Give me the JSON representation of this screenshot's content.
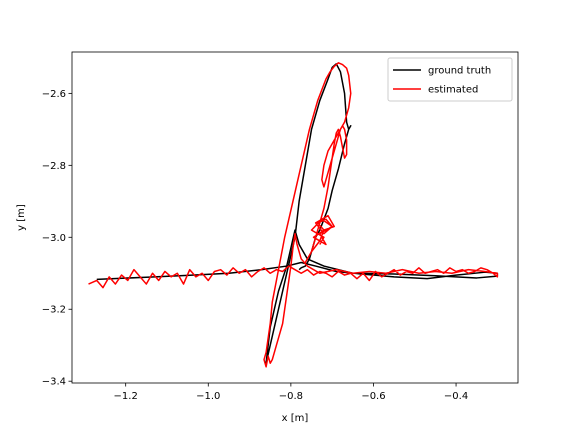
{
  "chart_data": {
    "type": "line",
    "title": "",
    "xlabel": "x [m]",
    "ylabel": "y [m]",
    "xlim": [
      -1.33,
      -0.25
    ],
    "ylim": [
      -3.405,
      -2.485
    ],
    "xticks": [
      -1.2,
      -1.0,
      -0.8,
      -0.6,
      -0.4
    ],
    "xtick_labels": [
      "−1.2",
      "−1.0",
      "−0.8",
      "−0.6",
      "−0.4"
    ],
    "yticks": [
      -3.4,
      -3.2,
      -3.0,
      -2.8,
      -2.6
    ],
    "ytick_labels": [
      "−3.4",
      "−3.2",
      "−3.0",
      "−2.8",
      "−2.6"
    ],
    "grid": false,
    "legend_position": "upper right",
    "series": [
      {
        "name": "ground truth",
        "color": "#000000",
        "x": [
          -1.27,
          -1.15,
          -1.05,
          -0.95,
          -0.87,
          -0.81,
          -0.775,
          -0.74,
          -0.69,
          -0.63,
          -0.55,
          -0.47,
          -0.4,
          -0.33,
          -0.3,
          -0.3,
          -0.35,
          -0.45,
          -0.55,
          -0.65,
          -0.72,
          -0.76,
          -0.78,
          -0.79,
          -0.8,
          -0.81,
          -0.83,
          -0.85,
          -0.86,
          -0.85,
          -0.83,
          -0.81,
          -0.79,
          -0.78,
          -0.765,
          -0.75,
          -0.73,
          -0.71,
          -0.7,
          -0.69,
          -0.68,
          -0.67,
          -0.665,
          -0.66,
          -0.655,
          -0.66,
          -0.67,
          -0.685,
          -0.7,
          -0.71,
          -0.72,
          -0.73,
          -0.74,
          -0.745,
          -0.75,
          -0.755,
          -0.76,
          -0.765,
          -0.775,
          -0.78
        ],
        "y": [
          -3.117,
          -3.111,
          -3.106,
          -3.1,
          -3.09,
          -3.08,
          -3.07,
          -3.08,
          -3.095,
          -3.102,
          -3.11,
          -3.115,
          -3.105,
          -3.097,
          -3.1,
          -3.108,
          -3.113,
          -3.107,
          -3.102,
          -3.1,
          -3.08,
          -3.06,
          -3.02,
          -2.98,
          -3.03,
          -3.08,
          -3.15,
          -3.25,
          -3.35,
          -3.3,
          -3.2,
          -3.1,
          -3.0,
          -2.9,
          -2.8,
          -2.7,
          -2.62,
          -2.56,
          -2.528,
          -2.518,
          -2.54,
          -2.6,
          -2.68,
          -2.7,
          -2.69,
          -2.7,
          -2.74,
          -2.81,
          -2.87,
          -2.92,
          -2.95,
          -2.98,
          -3.0,
          -3.02,
          -3.04,
          -3.06,
          -3.07,
          -3.08,
          -3.085,
          -3.09
        ]
      },
      {
        "name": "estimated",
        "color": "#ff0000",
        "x": [
          -1.29,
          -1.27,
          -1.255,
          -1.24,
          -1.225,
          -1.21,
          -1.195,
          -1.18,
          -1.165,
          -1.15,
          -1.135,
          -1.12,
          -1.105,
          -1.09,
          -1.075,
          -1.06,
          -1.045,
          -1.03,
          -1.015,
          -1.0,
          -0.985,
          -0.97,
          -0.955,
          -0.94,
          -0.925,
          -0.91,
          -0.895,
          -0.88,
          -0.865,
          -0.85,
          -0.835,
          -0.82,
          -0.805,
          -0.79,
          -0.775,
          -0.76,
          -0.745,
          -0.73,
          -0.715,
          -0.7,
          -0.685,
          -0.67,
          -0.655,
          -0.64,
          -0.625,
          -0.61,
          -0.595,
          -0.58,
          -0.565,
          -0.55,
          -0.535,
          -0.52,
          -0.505,
          -0.49,
          -0.475,
          -0.46,
          -0.445,
          -0.43,
          -0.415,
          -0.4,
          -0.385,
          -0.37,
          -0.355,
          -0.34,
          -0.325,
          -0.31,
          -0.3,
          -0.3,
          -0.33,
          -0.37,
          -0.41,
          -0.45,
          -0.49,
          -0.53,
          -0.57,
          -0.61,
          -0.65,
          -0.69,
          -0.73,
          -0.76,
          -0.775,
          -0.785,
          -0.79,
          -0.795,
          -0.8,
          -0.805,
          -0.81,
          -0.815,
          -0.82,
          -0.83,
          -0.835,
          -0.84,
          -0.845,
          -0.85,
          -0.855,
          -0.86,
          -0.865,
          -0.86,
          -0.855,
          -0.85,
          -0.845,
          -0.835,
          -0.825,
          -0.815,
          -0.805,
          -0.795,
          -0.785,
          -0.775,
          -0.765,
          -0.755,
          -0.745,
          -0.735,
          -0.725,
          -0.715,
          -0.705,
          -0.695,
          -0.685,
          -0.675,
          -0.665,
          -0.66,
          -0.655,
          -0.66,
          -0.67,
          -0.68,
          -0.69,
          -0.7,
          -0.71,
          -0.72,
          -0.725,
          -0.72,
          -0.71,
          -0.7,
          -0.69,
          -0.68,
          -0.675,
          -0.67,
          -0.665,
          -0.665,
          -0.67,
          -0.675,
          -0.68,
          -0.685,
          -0.69,
          -0.695,
          -0.7,
          -0.705,
          -0.71,
          -0.715,
          -0.72,
          -0.725,
          -0.73,
          -0.735,
          -0.74,
          -0.745,
          -0.75,
          -0.755,
          -0.76,
          -0.765,
          -0.75,
          -0.73,
          -0.72,
          -0.735,
          -0.715,
          -0.7,
          -0.72,
          -0.74,
          -0.71,
          -0.695,
          -0.72,
          -0.745,
          -0.715,
          -0.73,
          -0.7,
          -0.725,
          -0.75,
          -0.72,
          -0.73
        ],
        "y": [
          -3.13,
          -3.12,
          -3.14,
          -3.11,
          -3.13,
          -3.105,
          -3.12,
          -3.09,
          -3.11,
          -3.13,
          -3.1,
          -3.12,
          -3.095,
          -3.11,
          -3.1,
          -3.13,
          -3.09,
          -3.11,
          -3.1,
          -3.12,
          -3.095,
          -3.09,
          -3.105,
          -3.085,
          -3.1,
          -3.09,
          -3.11,
          -3.095,
          -3.085,
          -3.1,
          -3.09,
          -3.095,
          -3.08,
          -3.09,
          -3.1,
          -3.09,
          -3.105,
          -3.095,
          -3.1,
          -3.11,
          -3.095,
          -3.105,
          -3.1,
          -3.115,
          -3.1,
          -3.12,
          -3.095,
          -3.11,
          -3.1,
          -3.09,
          -3.105,
          -3.095,
          -3.1,
          -3.085,
          -3.1,
          -3.095,
          -3.09,
          -3.1,
          -3.085,
          -3.095,
          -3.09,
          -3.1,
          -3.095,
          -3.085,
          -3.09,
          -3.1,
          -3.11,
          -3.1,
          -3.095,
          -3.09,
          -3.1,
          -3.095,
          -3.1,
          -3.09,
          -3.1,
          -3.095,
          -3.1,
          -3.09,
          -3.1,
          -3.08,
          -3.06,
          -3.02,
          -2.99,
          -3.03,
          -3.08,
          -3.12,
          -3.16,
          -3.2,
          -3.24,
          -3.28,
          -3.3,
          -3.32,
          -3.34,
          -3.35,
          -3.33,
          -3.36,
          -3.34,
          -3.32,
          -3.28,
          -3.24,
          -3.18,
          -3.12,
          -3.06,
          -3.0,
          -2.95,
          -2.9,
          -2.85,
          -2.8,
          -2.75,
          -2.7,
          -2.66,
          -2.62,
          -2.59,
          -2.56,
          -2.54,
          -2.525,
          -2.515,
          -2.52,
          -2.53,
          -2.55,
          -2.6,
          -2.64,
          -2.68,
          -2.7,
          -2.72,
          -2.74,
          -2.76,
          -2.8,
          -2.84,
          -2.86,
          -2.82,
          -2.78,
          -2.74,
          -2.7,
          -2.69,
          -2.7,
          -2.73,
          -2.77,
          -2.78,
          -2.75,
          -2.72,
          -2.7,
          -2.71,
          -2.74,
          -2.78,
          -2.82,
          -2.86,
          -2.89,
          -2.92,
          -2.94,
          -2.96,
          -2.98,
          -3.0,
          -3.02,
          -3.04,
          -3.05,
          -3.06,
          -3.07,
          -3.04,
          -3.01,
          -2.98,
          -2.96,
          -2.95,
          -2.97,
          -2.99,
          -2.96,
          -2.94,
          -2.97,
          -2.98,
          -3.0,
          -3.02,
          -2.99,
          -2.97,
          -2.95,
          -2.98,
          -3.0,
          -3.02
        ]
      }
    ]
  }
}
